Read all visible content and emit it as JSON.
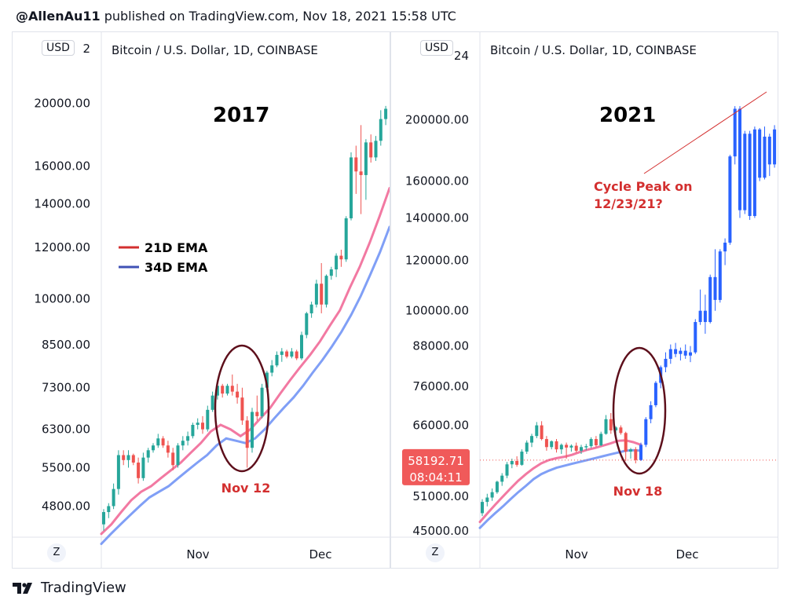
{
  "header": {
    "author": "@AllenAu11",
    "rest": " published on TradingView.com, Nov 18, 2021 15:58 UTC"
  },
  "footer": {
    "brand": "TradingView",
    "logo_icon": "tradingview-logo-icon"
  },
  "colors": {
    "up": "#26a69a",
    "down": "#ef5350",
    "ema21": "#f06292",
    "ema34": "#6a8ef5",
    "projection": "#2962ff",
    "annotation": "#d32f2f",
    "circle": "#5d0f1b"
  },
  "panels": [
    {
      "symbol": "Bitcoin / U.S. Dollar, 1D, COINBASE",
      "currency": "USD",
      "zoom_button": "Z",
      "year_label": "2017",
      "legend": [
        {
          "label": "21D EMA",
          "color": "#d32f2f"
        },
        {
          "label": "34D EMA",
          "color": "#3f51b5"
        }
      ],
      "annotation": "Nov 12",
      "x_ticks": [
        "Nov",
        "Dec"
      ],
      "y_ticks": [
        "2",
        "20000.00",
        "16000.00",
        "14000.00",
        "12000.00",
        "10000.00",
        "8500.00",
        "7300.00",
        "6300.00",
        "5500.00",
        "4800.00"
      ]
    },
    {
      "symbol": "Bitcoin / U.S. Dollar, 1D, COINBASE",
      "currency": "USD",
      "zoom_button": "Z",
      "year_label": "2021",
      "annotation_peak": [
        "Cycle Peak on",
        "12/23/21?"
      ],
      "annotation": "Nov 18",
      "price_badge": {
        "price": "58192.71",
        "countdown": "08:04:11"
      },
      "x_ticks": [
        "Nov",
        "Dec"
      ],
      "y_ticks": [
        "24",
        "200000.00",
        "160000.00",
        "140000.00",
        "120000.00",
        "100000.00",
        "88000.00",
        "76000.00",
        "66000.00",
        "51000.00",
        "45000.00"
      ]
    }
  ],
  "chart_data": [
    {
      "type": "candlestick",
      "title": "Bitcoin / U.S. Dollar, 1D, COINBASE",
      "period": "2017",
      "ylim": [
        4300,
        23000
      ],
      "series": [
        {
          "name": "price",
          "ohlc": [
            [
              4500,
              4750,
              4400,
              4700
            ],
            [
              4700,
              4850,
              4600,
              4800
            ],
            [
              4800,
              5200,
              4750,
              5100
            ],
            [
              5100,
              5850,
              5000,
              5750
            ],
            [
              5750,
              5850,
              5550,
              5650
            ],
            [
              5650,
              5850,
              5500,
              5750
            ],
            [
              5750,
              5780,
              5550,
              5600
            ],
            [
              5600,
              5700,
              5200,
              5300
            ],
            [
              5300,
              5800,
              5250,
              5700
            ],
            [
              5700,
              5900,
              5600,
              5850
            ],
            [
              5850,
              6000,
              5800,
              5950
            ],
            [
              5950,
              6200,
              5900,
              6100
            ],
            [
              6100,
              6150,
              5900,
              5950
            ],
            [
              5950,
              6050,
              5700,
              5800
            ],
            [
              5800,
              5900,
              5450,
              5550
            ],
            [
              5550,
              6000,
              5500,
              5950
            ],
            [
              5950,
              6150,
              5850,
              6050
            ],
            [
              6050,
              6250,
              5950,
              6150
            ],
            [
              6150,
              6450,
              6100,
              6400
            ],
            [
              6400,
              6550,
              6300,
              6450
            ],
            [
              6450,
              6600,
              6200,
              6300
            ],
            [
              6300,
              6850,
              6250,
              6750
            ],
            [
              6750,
              7200,
              6700,
              7100
            ],
            [
              7100,
              7500,
              7000,
              7350
            ],
            [
              7350,
              7400,
              7050,
              7150
            ],
            [
              7150,
              7400,
              7100,
              7350
            ],
            [
              7350,
              7650,
              7100,
              7200
            ],
            [
              7200,
              7400,
              6900,
              7050
            ],
            [
              7050,
              7300,
              6400,
              6500
            ],
            [
              6500,
              6600,
              5500,
              5900
            ],
            [
              5900,
              6800,
              5800,
              6700
            ],
            [
              6700,
              7100,
              6500,
              6600
            ],
            [
              6600,
              7400,
              6550,
              7300
            ],
            [
              7300,
              7750,
              7200,
              7700
            ],
            [
              7700,
              8050,
              7600,
              7900
            ],
            [
              7900,
              8300,
              7850,
              8200
            ],
            [
              8200,
              8400,
              8000,
              8300
            ],
            [
              8300,
              8350,
              8100,
              8150
            ],
            [
              8150,
              8400,
              8100,
              8300
            ],
            [
              8300,
              8350,
              8050,
              8100
            ],
            [
              8100,
              8900,
              8050,
              8800
            ],
            [
              8800,
              9550,
              8700,
              9500
            ],
            [
              9500,
              9900,
              9350,
              9800
            ],
            [
              9800,
              10700,
              9700,
              10550
            ],
            [
              10550,
              11350,
              9500,
              9800
            ],
            [
              9800,
              10900,
              9700,
              10850
            ],
            [
              10850,
              11200,
              10700,
              11100
            ],
            [
              11100,
              11750,
              10800,
              11650
            ],
            [
              11650,
              11900,
              11200,
              11500
            ],
            [
              11500,
              13400,
              11400,
              13300
            ],
            [
              13300,
              16800,
              13200,
              16500
            ],
            [
              16500,
              17200,
              14500,
              15700
            ],
            [
              15700,
              18500,
              13500,
              15500
            ],
            [
              15500,
              17600,
              14200,
              17400
            ],
            [
              17400,
              17900,
              16200,
              16500
            ],
            [
              16500,
              17800,
              16300,
              17500
            ],
            [
              17500,
              19500,
              17200,
              18900
            ],
            [
              18900,
              19800,
              18500,
              19600
            ]
          ]
        },
        {
          "name": "21D EMA",
          "values": [
            4350,
            4500,
            4700,
            4900,
            5050,
            5150,
            5300,
            5450,
            5600,
            5800,
            6000,
            6250,
            6400,
            6300,
            6150,
            6300,
            6550,
            6800,
            7150,
            7500,
            7850,
            8200,
            8600,
            9100,
            9600,
            10400,
            11200,
            12200,
            13400,
            14800
          ]
        },
        {
          "name": "34D EMA",
          "values": [
            4200,
            4350,
            4500,
            4650,
            4800,
            4950,
            5050,
            5150,
            5300,
            5450,
            5600,
            5750,
            5950,
            6100,
            6050,
            6000,
            6100,
            6300,
            6550,
            6800,
            7050,
            7350,
            7700,
            8050,
            8450,
            8900,
            9450,
            10100,
            10900,
            11800,
            12900
          ]
        }
      ]
    },
    {
      "type": "candlestick",
      "title": "Bitcoin / U.S. Dollar, 1D, COINBASE",
      "period": "2021",
      "ylim": [
        44000,
        245000
      ],
      "series": [
        {
          "name": "price",
          "ohlc": [
            [
              48000,
              50500,
              47500,
              50000
            ],
            [
              50000,
              51500,
              49200,
              50800
            ],
            [
              50800,
              52500,
              50200,
              51800
            ],
            [
              51800,
              54000,
              51500,
              53800
            ],
            [
              53800,
              55500,
              53000,
              55000
            ],
            [
              55000,
              57800,
              54500,
              57300
            ],
            [
              57300,
              58500,
              56500,
              58000
            ],
            [
              58000,
              59000,
              56800,
              57200
            ],
            [
              57200,
              60500,
              57000,
              60000
            ],
            [
              60000,
              62500,
              59500,
              62000
            ],
            [
              62000,
              64000,
              61000,
              63500
            ],
            [
              63500,
              66800,
              63000,
              66000
            ],
            [
              66000,
              67000,
              62500,
              62800
            ],
            [
              62800,
              63500,
              60200,
              61000
            ],
            [
              61000,
              62500,
              60500,
              62300
            ],
            [
              62300,
              62800,
              59800,
              60500
            ],
            [
              60500,
              61800,
              59500,
              61500
            ],
            [
              61500,
              62000,
              58500,
              60900
            ],
            [
              60900,
              61600,
              60000,
              61300
            ],
            [
              61300,
              62000,
              59800,
              60200
            ],
            [
              60200,
              61500,
              59500,
              61000
            ],
            [
              61000,
              61700,
              60300,
              61200
            ],
            [
              61200,
              63200,
              60800,
              62800
            ],
            [
              62800,
              63500,
              61000,
              61400
            ],
            [
              61400,
              64500,
              61200,
              64000
            ],
            [
              64000,
              68500,
              63800,
              67500
            ],
            [
              67500,
              69000,
              64000,
              64800
            ],
            [
              64800,
              65800,
              63500,
              65500
            ],
            [
              65500,
              66000,
              63800,
              64200
            ],
            [
              64200,
              64500,
              58000,
              60000
            ],
            [
              60000,
              60800,
              58500,
              60500
            ],
            [
              60500,
              61000,
              57500,
              58200
            ]
          ]
        },
        {
          "name": "projection",
          "ohlc": [
            [
              58200,
              62000,
              58000,
              61500
            ],
            [
              61500,
              68000,
              61000,
              67500
            ],
            [
              67500,
              72000,
              66500,
              71000
            ],
            [
              71000,
              77500,
              70500,
              77000
            ],
            [
              77000,
              82000,
              75500,
              81500
            ],
            [
              81500,
              86000,
              80000,
              84000
            ],
            [
              84000,
              88500,
              82500,
              87000
            ],
            [
              87000,
              89000,
              84500,
              85500
            ],
            [
              85500,
              87500,
              83500,
              86500
            ],
            [
              86500,
              88500,
              84000,
              85000
            ],
            [
              85000,
              88000,
              83000,
              86000
            ],
            [
              86000,
              97000,
              85500,
              96000
            ],
            [
              96000,
              108000,
              95000,
              100000
            ],
            [
              100000,
              106000,
              92000,
              96000
            ],
            [
              96000,
              114000,
              95500,
              113000
            ],
            [
              113000,
              125000,
              100000,
              104000
            ],
            [
              104000,
              125000,
              103000,
              124000
            ],
            [
              124000,
              130000,
              118000,
              128000
            ],
            [
              128000,
              176000,
              127000,
              175000
            ],
            [
              175000,
              210000,
              170000,
              208000
            ],
            [
              208000,
              210000,
              140000,
              144000
            ],
            [
              144000,
              192000,
              142000,
              190000
            ],
            [
              190000,
              192000,
              139000,
              141000
            ],
            [
              141000,
              195000,
              140000,
              193000
            ],
            [
              193000,
              194000,
              160000,
              162000
            ],
            [
              162000,
              195000,
              161000,
              188000
            ],
            [
              188000,
              190000,
              163000,
              170000
            ],
            [
              170000,
              196000,
              168000,
              193000
            ],
            [
              193000,
              204000,
              180000,
              190000
            ],
            [
              190000,
              210000,
              188000,
              208000
            ],
            [
              208000,
              210000,
              200000,
              202000
            ]
          ]
        },
        {
          "name": "21D EMA",
          "values": [
            46500,
            48000,
            49500,
            51000,
            52500,
            54000,
            55300,
            56500,
            57500,
            58200,
            58600,
            58900,
            59300,
            59900,
            60400,
            60800,
            61300,
            61800,
            62400,
            62500,
            62100,
            61500
          ]
        },
        {
          "name": "34D EMA",
          "values": [
            45500,
            46800,
            48000,
            49200,
            50500,
            51800,
            53000,
            54300,
            55300,
            56000,
            56600,
            57000,
            57400,
            57800,
            58200,
            58600,
            59000,
            59400,
            59800,
            60200,
            60300,
            60200
          ]
        },
        {
          "name": "projection-line",
          "values": [
            [
              160000
            ],
            [
              208000
            ]
          ]
        }
      ]
    }
  ]
}
